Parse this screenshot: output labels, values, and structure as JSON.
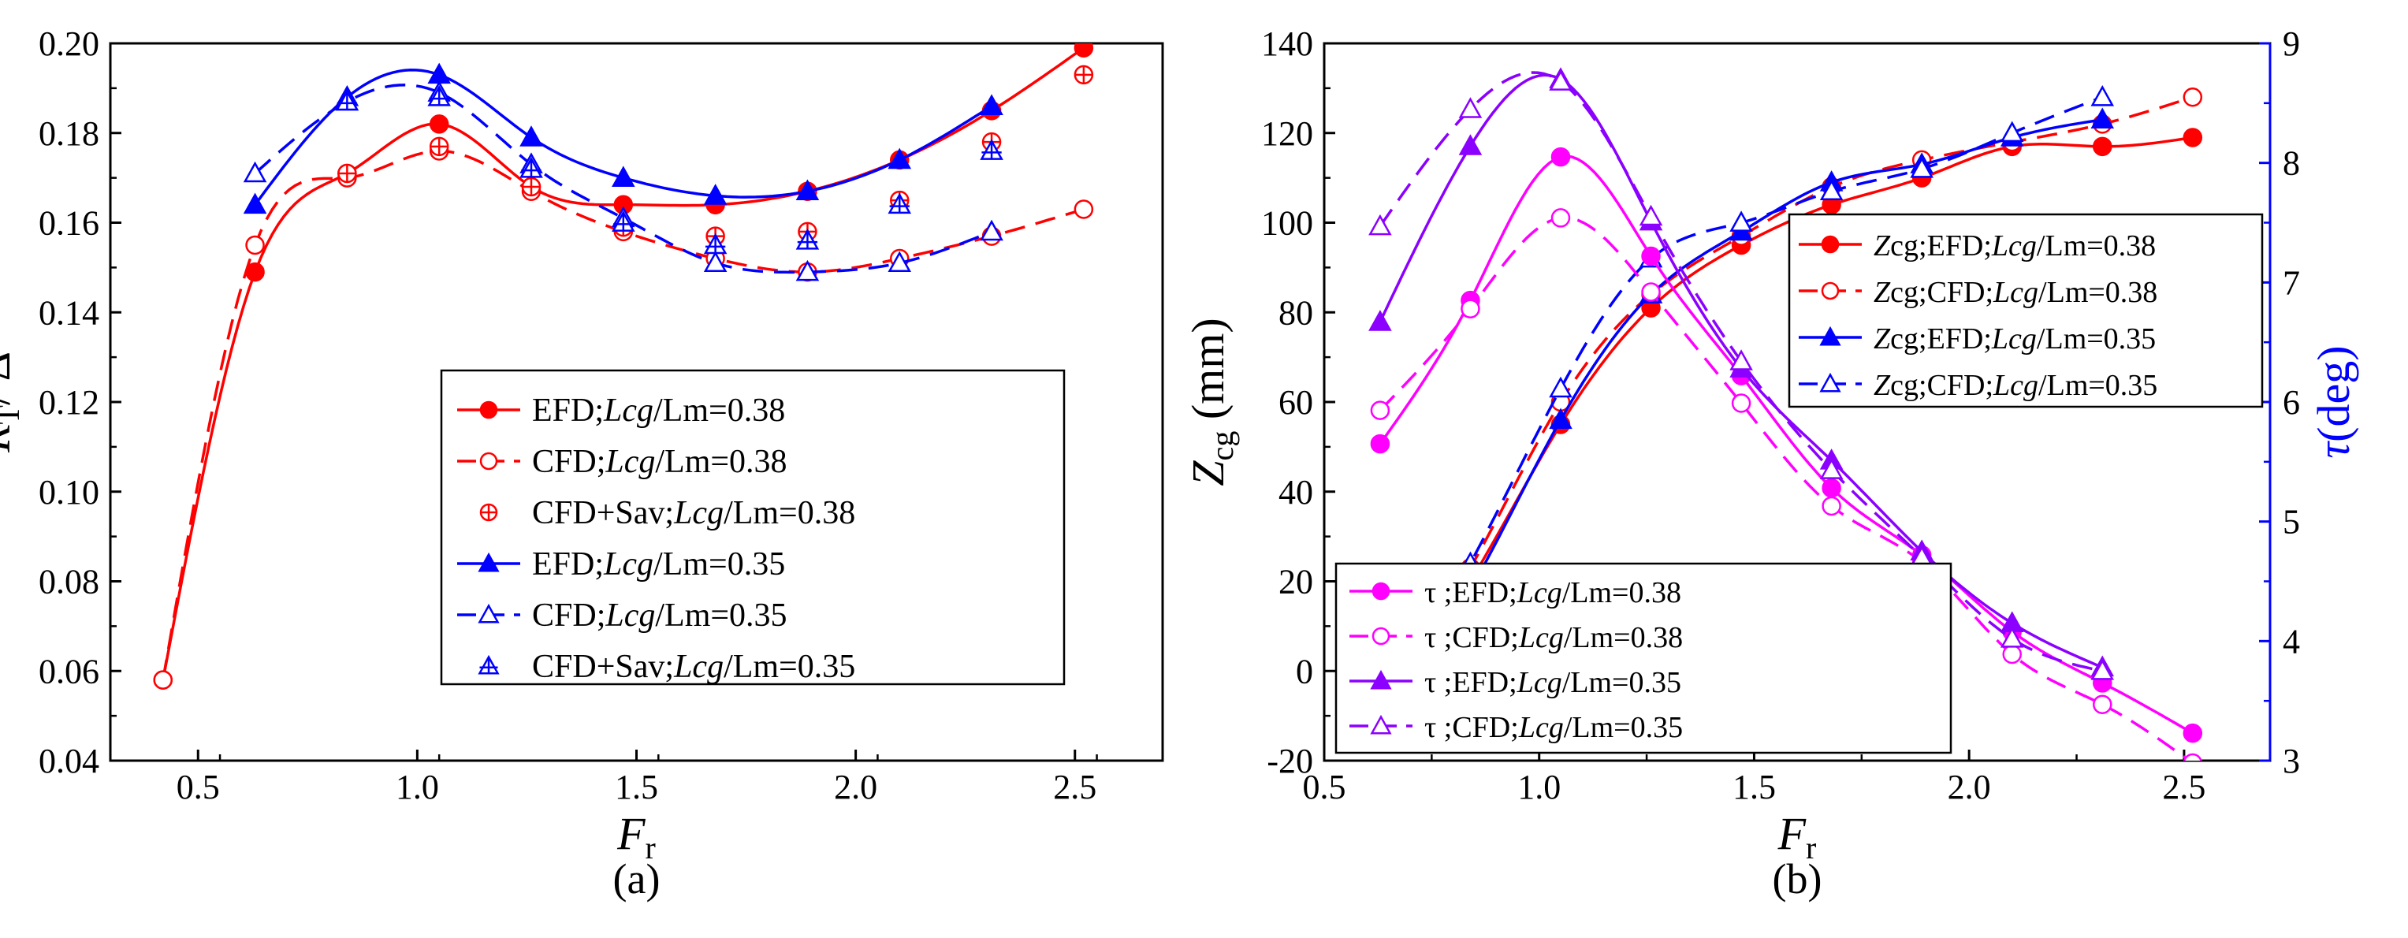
{
  "chart_data": [
    {
      "type": "line",
      "panel_label": "(a)",
      "xlabel": {
        "main": "F",
        "sub": "r"
      },
      "ylabel": {
        "main": "R",
        "sub": "T",
        "tail": "/ Δ"
      },
      "xlim": [
        0.3,
        2.7
      ],
      "ylim": [
        0.04,
        0.2
      ],
      "xticks": [
        0.5,
        1.0,
        1.5,
        2.0,
        2.5
      ],
      "xtick_labels": [
        "0.5",
        "1.0",
        "1.5",
        "2.0",
        "2.5"
      ],
      "yticks": [
        0.04,
        0.06,
        0.08,
        0.1,
        0.12,
        0.14,
        0.16,
        0.18,
        0.2
      ],
      "ytick_labels": [
        "0.04",
        "0.06",
        "0.08",
        "0.10",
        "0.12",
        "0.14",
        "0.16",
        "0.18",
        "0.20"
      ],
      "legend_position": "center-right",
      "series": [
        {
          "name": "EFD;Lcg/Lm=0.38",
          "legend": {
            "pre": "EFD;",
            "italic": "Lcg",
            "post": "/Lm=0.38"
          },
          "color": "#ff0000",
          "marker": "circle-filled",
          "line": "solid",
          "x": [
            0.42,
            0.63,
            0.84,
            1.05,
            1.26,
            1.47,
            1.68,
            1.89,
            2.1,
            2.31,
            2.52
          ],
          "y": [
            0.058,
            0.149,
            0.171,
            0.182,
            0.168,
            0.164,
            0.164,
            0.167,
            0.174,
            0.185,
            0.199
          ]
        },
        {
          "name": "CFD;Lcg/Lm=0.38",
          "legend": {
            "pre": "CFD;",
            "italic": "Lcg",
            "post": "/Lm=0.38"
          },
          "color": "#ff0000",
          "marker": "circle-open",
          "line": "dashed",
          "x": [
            0.42,
            0.63,
            0.84,
            1.05,
            1.26,
            1.47,
            1.68,
            1.89,
            2.1,
            2.31,
            2.52
          ],
          "y": [
            0.058,
            0.155,
            0.17,
            0.176,
            0.167,
            0.158,
            0.152,
            0.149,
            0.152,
            0.157,
            0.163
          ]
        },
        {
          "name": "CFD+Sav;Lcg/Lm=0.38",
          "legend": {
            "pre": "CFD+Sav;",
            "italic": "Lcg",
            "post": "/Lm=0.38"
          },
          "color": "#ff0000",
          "marker": "circle-plus",
          "line": "none",
          "x": [
            0.84,
            1.05,
            1.26,
            1.47,
            1.68,
            1.89,
            2.1,
            2.31,
            2.52
          ],
          "y": [
            0.171,
            0.177,
            0.168,
            0.159,
            0.157,
            0.158,
            0.165,
            0.178,
            0.193
          ]
        },
        {
          "name": "EFD;Lcg/Lm=0.35",
          "legend": {
            "pre": "EFD;",
            "italic": "Lcg",
            "post": "/Lm=0.35"
          },
          "color": "#0000ff",
          "marker": "triangle-filled",
          "line": "solid",
          "x": [
            0.63,
            0.84,
            1.05,
            1.26,
            1.47,
            1.68,
            1.89,
            2.1,
            2.31
          ],
          "y": [
            0.164,
            0.188,
            0.193,
            0.179,
            0.17,
            0.166,
            0.167,
            0.174,
            0.186
          ]
        },
        {
          "name": "CFD;Lcg/Lm=0.35",
          "legend": {
            "pre": "CFD;",
            "italic": "Lcg",
            "post": "/Lm=0.35"
          },
          "color": "#0000ff",
          "marker": "triangle-open",
          "line": "dashed",
          "x": [
            0.63,
            0.84,
            1.05,
            1.26,
            1.47,
            1.68,
            1.89,
            2.1,
            2.31
          ],
          "y": [
            0.171,
            0.187,
            0.189,
            0.173,
            0.161,
            0.151,
            0.149,
            0.151,
            0.158
          ]
        },
        {
          "name": "CFD+Sav;Lcg/Lm=0.35",
          "legend": {
            "pre": "CFD+Sav;",
            "italic": "Lcg",
            "post": "/Lm=0.35"
          },
          "color": "#0000ff",
          "marker": "triangle-plus",
          "line": "none",
          "x": [
            0.84,
            1.05,
            1.26,
            1.47,
            1.68,
            1.89,
            2.1,
            2.31
          ],
          "y": [
            0.187,
            0.188,
            0.172,
            0.16,
            0.155,
            0.156,
            0.164,
            0.176
          ]
        }
      ]
    },
    {
      "type": "line",
      "panel_label": "(b)",
      "xlabel": {
        "main": "F",
        "sub": "r"
      },
      "ylabel": {
        "main": "Z",
        "sub": "cg",
        "tail": " (mm)"
      },
      "y2label": {
        "main": "τ",
        "tail": "(deg)"
      },
      "y2label_color": "#0000ff",
      "xlim": [
        0.5,
        2.7
      ],
      "ylim": [
        -20,
        140
      ],
      "y2lim": [
        3,
        9
      ],
      "xticks": [
        0.5,
        1.0,
        1.5,
        2.0,
        2.5
      ],
      "xtick_labels": [
        "0.5",
        "1.0",
        "1.5",
        "2.0",
        "2.5"
      ],
      "yticks": [
        -20,
        0,
        20,
        40,
        60,
        80,
        100,
        120,
        140
      ],
      "ytick_labels": [
        "-20",
        "0",
        "20",
        "40",
        "60",
        "80",
        "100",
        "120",
        "140"
      ],
      "y2ticks": [
        3,
        4,
        5,
        6,
        7,
        8,
        9
      ],
      "y2tick_labels": [
        "3",
        "4",
        "5",
        "6",
        "7",
        "8",
        "9"
      ],
      "series": [
        {
          "name": "Zcg;EFD;Lcg/Lm=0.38",
          "legend": {
            "pre_italic": "Z",
            "pre": "cg;EFD;",
            "italic": "Lcg",
            "post": "/Lm=0.38"
          },
          "axis": "left",
          "group": "z",
          "color": "#ff0000",
          "marker": "circle-filled",
          "line": "solid",
          "x": [
            0.63,
            0.84,
            1.05,
            1.26,
            1.47,
            1.68,
            1.89,
            2.1,
            2.31,
            2.52
          ],
          "y": [
            -9,
            20,
            55,
            81,
            95,
            104,
            110,
            117,
            117,
            119
          ]
        },
        {
          "name": "Zcg;CFD;Lcg/Lm=0.38",
          "legend": {
            "pre_italic": "Z",
            "pre": "cg;CFD;",
            "italic": "Lcg",
            "post": "/Lm=0.38"
          },
          "axis": "left",
          "group": "z",
          "color": "#ff0000",
          "marker": "circle-open",
          "line": "dashed",
          "x": [
            0.63,
            0.84,
            1.05,
            1.26,
            1.47,
            1.68,
            1.89,
            2.1,
            2.31,
            2.52
          ],
          "y": [
            -7,
            23,
            60,
            84,
            97,
            108,
            114,
            118,
            122,
            128
          ]
        },
        {
          "name": "Zcg;EFD;Lcg/Lm=0.35",
          "legend": {
            "pre_italic": "Z",
            "pre": "cg;EFD;",
            "italic": "Lcg",
            "post": "/Lm=0.35"
          },
          "axis": "left",
          "group": "z",
          "color": "#0000ff",
          "marker": "triangle-filled",
          "line": "solid",
          "x": [
            0.63,
            0.84,
            1.05,
            1.26,
            1.47,
            1.68,
            1.89,
            2.1,
            2.31
          ],
          "y": [
            -14,
            18,
            56,
            84,
            98,
            109,
            113,
            119,
            123
          ]
        },
        {
          "name": "Zcg;CFD;Lcg/Lm=0.35",
          "legend": {
            "pre_italic": "Z",
            "pre": "cg;CFD;",
            "italic": "Lcg",
            "post": "/Lm=0.35"
          },
          "axis": "left",
          "group": "z",
          "color": "#0000ff",
          "marker": "triangle-open",
          "line": "dashed",
          "x": [
            0.63,
            0.84,
            1.05,
            1.26,
            1.47,
            1.68,
            1.89,
            2.1,
            2.31
          ],
          "y": [
            -11,
            24,
            63,
            92,
            100,
            107,
            112,
            120,
            128
          ]
        },
        {
          "name": "τ;EFD;Lcg/Lm=0.38",
          "legend": {
            "pre": "τ ;EFD;",
            "italic": "Lcg",
            "post": "/Lm=0.38"
          },
          "axis": "right",
          "group": "tau",
          "color": "#ff00ff",
          "marker": "circle-filled",
          "line": "solid",
          "x": [
            0.63,
            0.84,
            1.05,
            1.26,
            1.47,
            1.68,
            1.89,
            2.1,
            2.31,
            2.52
          ],
          "y": [
            5.65,
            6.85,
            8.05,
            7.22,
            6.22,
            5.28,
            4.72,
            4.08,
            3.65,
            3.23
          ]
        },
        {
          "name": "τ;CFD;Lcg/Lm=0.38",
          "legend": {
            "pre": "τ ;CFD;",
            "italic": "Lcg",
            "post": "/Lm=0.38"
          },
          "axis": "right",
          "group": "tau",
          "color": "#ff00ff",
          "marker": "circle-open",
          "line": "dashed",
          "x": [
            0.63,
            0.84,
            1.05,
            1.26,
            1.47,
            1.68,
            1.89,
            2.1,
            2.31,
            2.52
          ],
          "y": [
            5.93,
            6.78,
            7.54,
            6.92,
            5.99,
            5.13,
            4.66,
            3.89,
            3.47,
            2.98
          ]
        },
        {
          "name": "τ;EFD;Lcg/Lm=0.35",
          "legend": {
            "pre": "τ ;EFD;",
            "italic": "Lcg",
            "post": "/Lm=0.35"
          },
          "axis": "right",
          "group": "tau",
          "color": "#8b00ff",
          "marker": "triangle-filled",
          "line": "solid",
          "x": [
            0.63,
            0.84,
            1.05,
            1.26,
            1.47,
            1.68,
            1.89,
            2.1,
            2.31
          ],
          "y": [
            6.67,
            8.14,
            8.7,
            7.51,
            6.28,
            5.51,
            4.75,
            4.15,
            3.78
          ]
        },
        {
          "name": "τ;CFD;Lcg/Lm=0.35",
          "legend": {
            "pre": "τ ;CFD;",
            "italic": "Lcg",
            "post": "/Lm=0.35"
          },
          "axis": "right",
          "group": "tau",
          "color": "#8b00ff",
          "marker": "triangle-open",
          "line": "dashed",
          "x": [
            0.63,
            0.84,
            1.05,
            1.26,
            1.47,
            1.68,
            1.89,
            2.1,
            2.31
          ],
          "y": [
            7.47,
            8.45,
            8.68,
            7.55,
            6.34,
            5.43,
            4.7,
            4.02,
            3.75
          ]
        }
      ]
    }
  ]
}
